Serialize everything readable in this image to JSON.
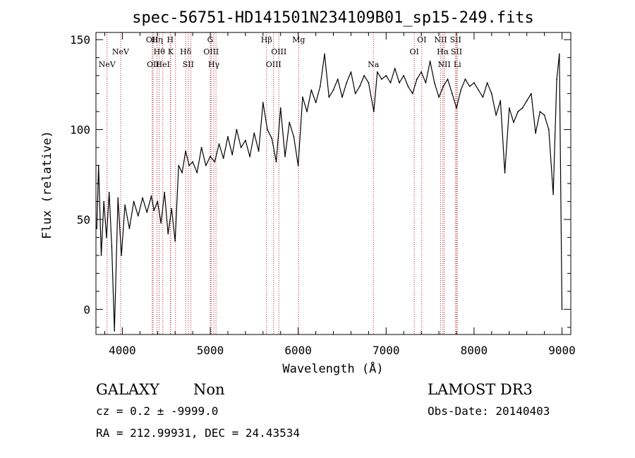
{
  "chart_data": {
    "type": "line",
    "title": "spec-56751-HD141501N234109B01_sp15-249.fits",
    "xlabel": "Wavelength (Å)",
    "ylabel": "Flux (relative)",
    "xlim": [
      3700,
      9100
    ],
    "ylim": [
      -14,
      154
    ],
    "x_ticks": [
      4000,
      5000,
      6000,
      7000,
      8000,
      9000
    ],
    "x_tick_labels": [
      "4000",
      "5000",
      "6000",
      "7000",
      "8000",
      "9000"
    ],
    "y_ticks": [
      0,
      50,
      100,
      150
    ],
    "y_tick_labels": [
      "0",
      "50",
      "100",
      "150"
    ],
    "grid": false,
    "series": [
      {
        "name": "flux",
        "x": [
          3710,
          3730,
          3760,
          3790,
          3820,
          3850,
          3880,
          3910,
          3950,
          3990,
          4030,
          4080,
          4130,
          4180,
          4230,
          4280,
          4330,
          4360,
          4400,
          4440,
          4480,
          4520,
          4560,
          4600,
          4640,
          4680,
          4720,
          4760,
          4800,
          4850,
          4900,
          4950,
          5000,
          5050,
          5100,
          5150,
          5200,
          5250,
          5300,
          5350,
          5400,
          5450,
          5500,
          5550,
          5600,
          5650,
          5700,
          5750,
          5800,
          5850,
          5900,
          5950,
          6000,
          6050,
          6100,
          6150,
          6200,
          6250,
          6300,
          6350,
          6400,
          6450,
          6500,
          6550,
          6600,
          6650,
          6700,
          6750,
          6800,
          6860,
          6900,
          6950,
          7000,
          7050,
          7100,
          7150,
          7200,
          7250,
          7300,
          7350,
          7400,
          7450,
          7500,
          7550,
          7600,
          7650,
          7700,
          7750,
          7800,
          7850,
          7900,
          7950,
          8000,
          8050,
          8100,
          8150,
          8200,
          8250,
          8300,
          8350,
          8400,
          8450,
          8500,
          8550,
          8600,
          8650,
          8700,
          8750,
          8800,
          8850,
          8900,
          8940,
          8970,
          9000
        ],
        "y": [
          45,
          80,
          30,
          60,
          40,
          65,
          35,
          -12,
          62,
          30,
          58,
          45,
          60,
          52,
          62,
          54,
          63,
          55,
          60,
          48,
          65,
          42,
          56,
          38,
          80,
          76,
          88,
          80,
          82,
          76,
          90,
          80,
          85,
          82,
          92,
          84,
          96,
          86,
          100,
          90,
          94,
          85,
          98,
          88,
          115,
          100,
          95,
          82,
          112,
          85,
          104,
          96,
          80,
          118,
          110,
          122,
          115,
          124,
          142,
          118,
          122,
          128,
          118,
          126,
          132,
          120,
          124,
          130,
          126,
          110,
          132,
          128,
          130,
          126,
          134,
          126,
          130,
          124,
          120,
          128,
          132,
          126,
          138,
          126,
          118,
          124,
          128,
          120,
          112,
          122,
          128,
          124,
          126,
          122,
          118,
          126,
          120,
          108,
          116,
          76,
          112,
          104,
          110,
          112,
          116,
          120,
          98,
          110,
          108,
          100,
          64,
          128,
          142,
          0
        ]
      }
    ],
    "line_markers": [
      {
        "wl": 3826,
        "label": "NeV",
        "row": 2
      },
      {
        "wl": 3980,
        "label": "NeV",
        "row": 1
      },
      {
        "wl": 4340,
        "label": "OII",
        "row": 0
      },
      {
        "wl": 4350,
        "label": "OII",
        "row": 2
      },
      {
        "wl": 4395,
        "label": "Hη",
        "row": 0
      },
      {
        "wl": 4420,
        "label": "Hθ",
        "row": 1
      },
      {
        "wl": 4460,
        "label": "HeI",
        "row": 2
      },
      {
        "wl": 4545,
        "label": "H",
        "row": 0
      },
      {
        "wl": 4550,
        "label": "K",
        "row": 1
      },
      {
        "wl": 4605,
        "label": "",
        "row": -1
      },
      {
        "wl": 4720,
        "label": "Hδ",
        "row": 1
      },
      {
        "wl": 4750,
        "label": "SII",
        "row": 2
      },
      {
        "wl": 4780,
        "label": "",
        "row": -1
      },
      {
        "wl": 5000,
        "label": "G",
        "row": 0
      },
      {
        "wl": 5010,
        "label": "OIII",
        "row": 1
      },
      {
        "wl": 5040,
        "label": "Hγ",
        "row": 2
      },
      {
        "wl": 5065,
        "label": "",
        "row": -1
      },
      {
        "wl": 5640,
        "label": "Hβ",
        "row": 0
      },
      {
        "wl": 5720,
        "label": "OIII",
        "row": 2
      },
      {
        "wl": 5780,
        "label": "OIII",
        "row": 1
      },
      {
        "wl": 6005,
        "label": "Mg",
        "row": 0
      },
      {
        "wl": 6855,
        "label": "Na",
        "row": 2
      },
      {
        "wl": 7320,
        "label": "OI",
        "row": 1
      },
      {
        "wl": 7405,
        "label": "OI",
        "row": 0
      },
      {
        "wl": 7620,
        "label": "NII",
        "row": 0
      },
      {
        "wl": 7645,
        "label": "Hα",
        "row": 1
      },
      {
        "wl": 7660,
        "label": "NII",
        "row": 2
      },
      {
        "wl": 7790,
        "label": "SII",
        "row": 0
      },
      {
        "wl": 7800,
        "label": "SII",
        "row": 1
      },
      {
        "wl": 7810,
        "label": "Li",
        "row": 2
      }
    ]
  },
  "footer": {
    "object_class": "GALAXY",
    "subclass": "Non",
    "survey": "LAMOST DR3",
    "cz_line": "cz = 0.2 ± -9999.0",
    "obs_date_line": "Obs-Date: 20140403",
    "coords_line": "RA = 212.99931, DEC =  24.43534"
  },
  "colors": {
    "spectrum": "#000000",
    "marker_line": "#b22222",
    "axes": "#000000",
    "background": "#ffffff"
  }
}
